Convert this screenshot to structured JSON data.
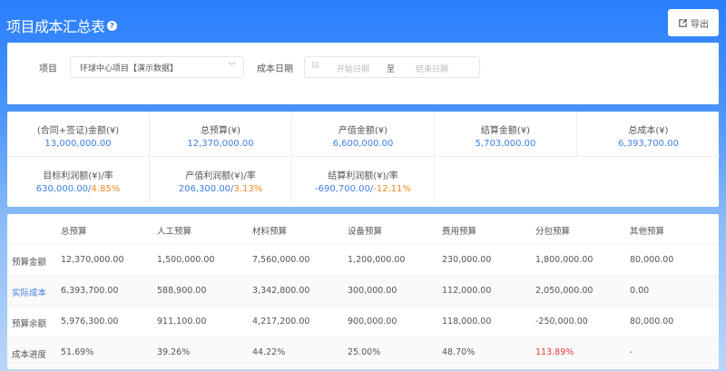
{
  "header": {
    "title": "项目成本汇总表",
    "help_icon": "question-circle-icon",
    "export_label": "导出",
    "export_icon": "export-icon"
  },
  "filter": {
    "project_label": "项目",
    "project_value": "环球中心项目【演示数据】",
    "date_label": "成本日期",
    "start_placeholder": "开始日期",
    "separator": "至",
    "end_placeholder": "结束日期"
  },
  "stats": [
    {
      "label": "(合同+签证)金额(¥)",
      "value": "13,000,000.00"
    },
    {
      "label": "总预算(¥)",
      "value": "12,370,000.00"
    },
    {
      "label": "产值金额(¥)",
      "value": "6,600,000.00"
    },
    {
      "label": "结算金额(¥)",
      "value": "5,703,000.00"
    },
    {
      "label": "总成本(¥)",
      "value": "6,393,700.00"
    },
    {
      "label": "目标利润额(¥)/率",
      "value": "630,000.00",
      "rate": "4.85%"
    },
    {
      "label": "产值利润额(¥)/率",
      "value": "206,300.00",
      "rate": "3.13%"
    },
    {
      "label": "结算利润额(¥)/率",
      "value": "-690,700.00",
      "rate": "-12.11%"
    }
  ],
  "table": {
    "headers": [
      "",
      "总预算",
      "人工预算",
      "材料预算",
      "设备预算",
      "费用预算",
      "分包预算",
      "其他预算"
    ],
    "rows": [
      [
        "预算金额",
        "12,370,000.00",
        "1,500,000.00",
        "7,560,000.00",
        "1,200,000.00",
        "230,000.00",
        "1,800,000.00",
        "80,000.00"
      ],
      [
        "实际成本",
        "6,393,700.00",
        "588,900.00",
        "3,342,800.00",
        "300,000.00",
        "112,000.00",
        "2,050,000.00",
        "0.00"
      ],
      [
        "预算余额",
        "5,976,300.00",
        "911,100.00",
        "4,217,200.00",
        "900,000.00",
        "118,000.00",
        "-250,000.00",
        "80,000.00"
      ],
      [
        "成本进度",
        "51.69%",
        "39.26%",
        "44.22%",
        "25.00%",
        "48.70%",
        "113.89%",
        "-"
      ]
    ]
  },
  "colors": {
    "accent": "#2a7ffd",
    "link": "#3d7fe0",
    "rate": "#f08a24",
    "over": "#e8363a"
  }
}
